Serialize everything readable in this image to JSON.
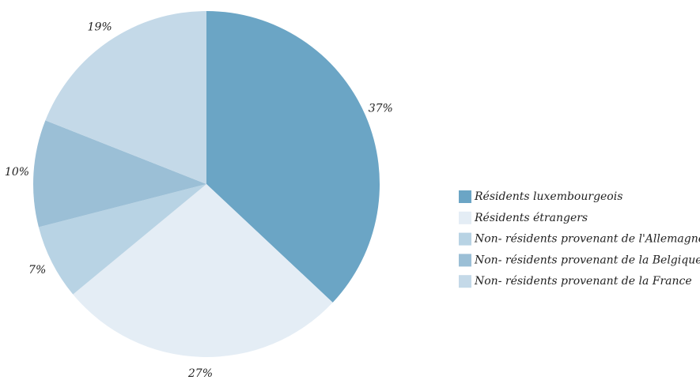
{
  "chart_data": {
    "type": "pie",
    "categories": [
      "Résidents luxembourgeois",
      "Résidents étrangers",
      "Non- résidents provenant de l'Allemagne",
      "Non- résidents provenant de la Belgique",
      "Non- résidents provenant de la France"
    ],
    "values": [
      37,
      27,
      7,
      10,
      19
    ],
    "value_labels": [
      "37%",
      "27%",
      "7%",
      "10%",
      "19%"
    ],
    "colors": [
      "#6ba5c5",
      "#e4edf5",
      "#b8d3e4",
      "#9bbfd6",
      "#c4d9e8"
    ],
    "legend": "right"
  }
}
